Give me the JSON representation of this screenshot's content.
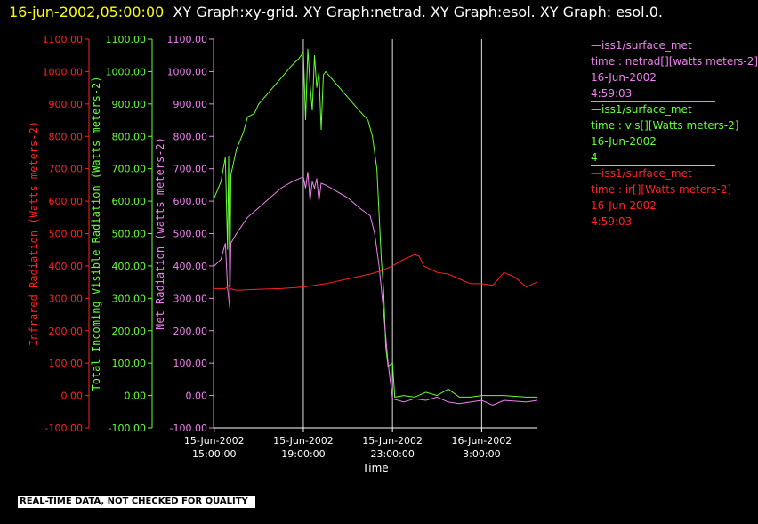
{
  "header": {
    "timestamp": "16-jun-2002,05:00:00",
    "graph_titles": "XY Graph:xy-grid.  XY Graph:netrad.  XY Graph:esol.  XY Graph: esol.0."
  },
  "legend": [
    {
      "source": "—iss1/surface_met",
      "label": "time : netrad[][watts meters-2]",
      "date": "16-Jun-2002",
      "time": "4:59:03",
      "color": "#ee82ee"
    },
    {
      "source": "—iss1/surface_met",
      "label": "time : vis[][Watts meters-2]",
      "date": "16-Jun-2002",
      "time": "4",
      "color": "#66ff33"
    },
    {
      "source": "—iss1/surface_met",
      "label": "time : ir[][Watts meters-2]",
      "date": "16-Jun-2002",
      "time": "4:59:03",
      "color": "#ff2222"
    }
  ],
  "footer": {
    "qc_note": "REAL-TIME DATA, NOT CHECKED FOR QUALITY"
  },
  "chart_data": {
    "type": "line",
    "xlabel": "Time",
    "x_ticks": [
      {
        "hour": 0,
        "line1": "15-Jun-2002",
        "line2": "15:00:00"
      },
      {
        "hour": 4,
        "line1": "15-Jun-2002",
        "line2": "19:00:00"
      },
      {
        "hour": 8,
        "line1": "15-Jun-2002",
        "line2": "23:00:00"
      },
      {
        "hour": 12,
        "line1": "16-Jun-2002",
        "line2": "3:00:00"
      }
    ],
    "xlim_hours_from_15jun_1500": [
      -0.03,
      14.5
    ],
    "grid_hours": [
      -0.03,
      4,
      8,
      12
    ],
    "y_axes": [
      {
        "label": "Infrared Radiation (Watts meters-2)",
        "color": "#ff2222",
        "ylim": [
          -100,
          1100
        ],
        "ticks": [
          "-100.00",
          "0.00",
          "100.00",
          "200.00",
          "300.00",
          "400.00",
          "500.00",
          "600.00",
          "700.00",
          "800.00",
          "900.00",
          "1000.00",
          "1100.00"
        ]
      },
      {
        "label": "Total Incoming Visible Radiation (Watts meters-2)",
        "color": "#66ff33",
        "ylim": [
          -100,
          1100
        ],
        "ticks": [
          "-100.00",
          "0.00",
          "100.00",
          "200.00",
          "300.00",
          "400.00",
          "500.00",
          "600.00",
          "700.00",
          "800.00",
          "900.00",
          "1000.00",
          "1100.00"
        ]
      },
      {
        "label": "Net Radiation (watts meters-2)",
        "color": "#ee82ee",
        "ylim": [
          -100,
          1100
        ],
        "ticks": [
          "-100.00",
          "0.00",
          "100.00",
          "200.00",
          "300.00",
          "400.00",
          "500.00",
          "600.00",
          "700.00",
          "800.00",
          "900.00",
          "1000.00",
          "1100.00"
        ]
      }
    ],
    "series": [
      {
        "name": "vis",
        "color": "#66ff33",
        "points": [
          [
            0,
            610
          ],
          [
            0.3,
            660
          ],
          [
            0.5,
            735
          ],
          [
            0.6,
            450
          ],
          [
            0.65,
            740
          ],
          [
            0.7,
            300
          ],
          [
            0.75,
            680
          ],
          [
            1.0,
            760
          ],
          [
            1.3,
            810
          ],
          [
            1.5,
            860
          ],
          [
            1.8,
            870
          ],
          [
            2.0,
            900
          ],
          [
            2.5,
            940
          ],
          [
            3.0,
            980
          ],
          [
            3.5,
            1020
          ],
          [
            3.8,
            1040
          ],
          [
            4.0,
            1060
          ],
          [
            4.1,
            850
          ],
          [
            4.2,
            1070
          ],
          [
            4.3,
            960
          ],
          [
            4.4,
            880
          ],
          [
            4.5,
            1050
          ],
          [
            4.6,
            950
          ],
          [
            4.7,
            1000
          ],
          [
            4.8,
            820
          ],
          [
            4.9,
            990
          ],
          [
            5.0,
            1000
          ],
          [
            5.5,
            960
          ],
          [
            6.0,
            920
          ],
          [
            6.5,
            880
          ],
          [
            6.9,
            850
          ],
          [
            7.1,
            800
          ],
          [
            7.3,
            700
          ],
          [
            7.5,
            420
          ],
          [
            7.6,
            330
          ],
          [
            7.7,
            150
          ],
          [
            7.8,
            90
          ],
          [
            8.0,
            100
          ],
          [
            8.1,
            -5
          ],
          [
            8.5,
            0
          ],
          [
            9.0,
            -5
          ],
          [
            9.5,
            10
          ],
          [
            10.0,
            0
          ],
          [
            10.5,
            20
          ],
          [
            11.0,
            -5
          ],
          [
            11.5,
            -5
          ],
          [
            12.0,
            0
          ],
          [
            12.5,
            0
          ],
          [
            13.0,
            0
          ],
          [
            14.0,
            -5
          ],
          [
            14.5,
            -5
          ]
        ]
      },
      {
        "name": "netrad",
        "color": "#ee82ee",
        "points": [
          [
            0,
            400
          ],
          [
            0.3,
            420
          ],
          [
            0.5,
            470
          ],
          [
            0.6,
            330
          ],
          [
            0.7,
            270
          ],
          [
            0.75,
            470
          ],
          [
            1.0,
            500
          ],
          [
            1.5,
            550
          ],
          [
            2.0,
            580
          ],
          [
            2.5,
            610
          ],
          [
            3.0,
            640
          ],
          [
            3.5,
            660
          ],
          [
            4.0,
            675
          ],
          [
            4.1,
            640
          ],
          [
            4.2,
            690
          ],
          [
            4.3,
            600
          ],
          [
            4.4,
            660
          ],
          [
            4.5,
            640
          ],
          [
            4.6,
            670
          ],
          [
            4.7,
            600
          ],
          [
            4.8,
            655
          ],
          [
            5.0,
            650
          ],
          [
            5.5,
            630
          ],
          [
            6.0,
            610
          ],
          [
            6.5,
            580
          ],
          [
            7.0,
            555
          ],
          [
            7.2,
            500
          ],
          [
            7.4,
            400
          ],
          [
            7.6,
            260
          ],
          [
            7.8,
            100
          ],
          [
            8.0,
            -10
          ],
          [
            8.5,
            -20
          ],
          [
            9.0,
            -10
          ],
          [
            9.5,
            -15
          ],
          [
            10.0,
            -5
          ],
          [
            10.5,
            -20
          ],
          [
            11.0,
            -25
          ],
          [
            11.5,
            -20
          ],
          [
            12.0,
            -15
          ],
          [
            12.5,
            -30
          ],
          [
            13.0,
            -15
          ],
          [
            14.0,
            -20
          ],
          [
            14.5,
            -15
          ]
        ]
      },
      {
        "name": "ir",
        "color": "#ff2222",
        "points": [
          [
            0,
            330
          ],
          [
            0.5,
            330
          ],
          [
            0.65,
            340
          ],
          [
            0.7,
            330
          ],
          [
            1.0,
            325
          ],
          [
            2.0,
            328
          ],
          [
            3.0,
            330
          ],
          [
            4.0,
            335
          ],
          [
            4.5,
            340
          ],
          [
            5.0,
            345
          ],
          [
            6.0,
            360
          ],
          [
            7.0,
            375
          ],
          [
            7.5,
            385
          ],
          [
            8.0,
            400
          ],
          [
            8.5,
            420
          ],
          [
            9.0,
            435
          ],
          [
            9.2,
            430
          ],
          [
            9.4,
            400
          ],
          [
            10.0,
            380
          ],
          [
            10.5,
            375
          ],
          [
            11.0,
            360
          ],
          [
            11.5,
            345
          ],
          [
            12.0,
            345
          ],
          [
            12.5,
            340
          ],
          [
            13.0,
            380
          ],
          [
            13.5,
            365
          ],
          [
            14.0,
            335
          ],
          [
            14.5,
            350
          ]
        ]
      }
    ]
  }
}
